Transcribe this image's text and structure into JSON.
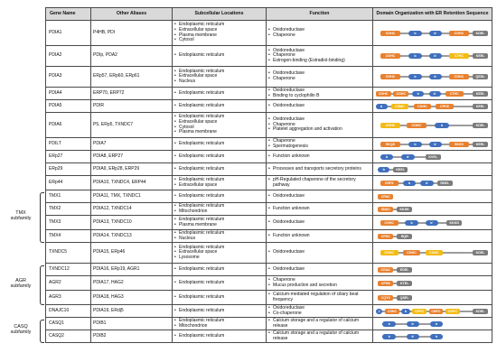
{
  "headers": {
    "gene": "Gene Name",
    "aliases": "Other Aliases",
    "locations": "Subcellular Locations",
    "function": "Function",
    "domain": "Domain Organization with ER Retention Sequence"
  },
  "rows": [
    {
      "gene": "PDIA1",
      "aliases": "P4HB, PDI",
      "loc": [
        "Endoplasmic reticulum",
        "Extracellular space",
        "Plasma membrane",
        "Cytosol"
      ],
      "func": [
        "Oxidoreductase",
        "Chaperone"
      ],
      "domains": [
        {
          "t": "a",
          "x": 6,
          "w": 17,
          "label": "CGHC"
        },
        {
          "t": "b",
          "x": 30,
          "w": 11,
          "label": "b"
        },
        {
          "t": "b",
          "x": 47,
          "w": 11,
          "label": "b'"
        },
        {
          "t": "a",
          "x": 64,
          "w": 17,
          "label": "CGHC"
        },
        {
          "t": "grey",
          "x": 84,
          "w": 13,
          "label": "KDEL"
        }
      ]
    },
    {
      "gene": "PDIA2",
      "aliases": "PDIp, PDA2",
      "loc": [
        "Endoplasmic reticulum"
      ],
      "func": [
        "Oxidoreductase",
        "Chaperone",
        "Estrogen-binding (Estradiol-binding)"
      ],
      "domains": [
        {
          "t": "a",
          "x": 6,
          "w": 17,
          "label": "CGHC"
        },
        {
          "t": "b",
          "x": 30,
          "w": 11,
          "label": "b"
        },
        {
          "t": "b",
          "x": 47,
          "w": 11,
          "label": "b'"
        },
        {
          "t": "yellow",
          "x": 64,
          "w": 17,
          "label": "CTHC"
        },
        {
          "t": "grey",
          "x": 84,
          "w": 13,
          "label": "KEEL"
        }
      ]
    },
    {
      "gene": "PDIA3",
      "aliases": "ERp57, ERp60, ERp61",
      "loc": [
        "Endoplasmic reticulum",
        "Extracellular space",
        "Nucleus"
      ],
      "func": [
        "Oxidoreductase",
        "Chaperone"
      ],
      "domains": [
        {
          "t": "a",
          "x": 6,
          "w": 17,
          "label": "CGHC"
        },
        {
          "t": "b",
          "x": 30,
          "w": 11,
          "label": "b"
        },
        {
          "t": "b",
          "x": 47,
          "w": 11,
          "label": "b'"
        },
        {
          "t": "a",
          "x": 64,
          "w": 17,
          "label": "CGHC"
        },
        {
          "t": "grey",
          "x": 84,
          "w": 13,
          "label": "QEDL"
        }
      ]
    },
    {
      "gene": "PDIA4",
      "aliases": "ERP70, ERP72",
      "loc": [
        "Endoplasmic reticulum"
      ],
      "func": [
        "Oxidoreductase",
        "Binding to cyclophilin B"
      ],
      "domains": [
        {
          "t": "a",
          "x": 2,
          "w": 13,
          "label": "CGHC"
        },
        {
          "t": "a",
          "x": 17,
          "w": 13,
          "label": "CGHC"
        },
        {
          "t": "b",
          "x": 33,
          "w": 10,
          "label": "b"
        },
        {
          "t": "b",
          "x": 47,
          "w": 10,
          "label": "b'"
        },
        {
          "t": "a",
          "x": 61,
          "w": 15,
          "label": "CTHC"
        },
        {
          "t": "grey",
          "x": 84,
          "w": 13,
          "label": "KEEL"
        }
      ]
    },
    {
      "gene": "PDIA5",
      "aliases": "PDIR",
      "loc": [
        "Endoplasmic reticulum"
      ],
      "func": [
        "Oxidoreductase"
      ],
      "domains": [
        {
          "t": "b",
          "x": 2,
          "w": 10,
          "label": "b"
        },
        {
          "t": "yellow",
          "x": 15,
          "w": 15,
          "label": "CSMC"
        },
        {
          "t": "a",
          "x": 34,
          "w": 15,
          "label": "CGHC"
        },
        {
          "t": "a",
          "x": 53,
          "w": 15,
          "label": "CPHC"
        },
        {
          "t": "grey",
          "x": 84,
          "w": 13,
          "label": "KEEL"
        }
      ]
    },
    {
      "gene": "PDIA6",
      "aliases": "P5, ERp5, TXNDC7",
      "loc": [
        "Endoplasmic reticulum",
        "Extracellular space",
        "Cytosol",
        "Plasma membrane"
      ],
      "func": [
        "Oxidoreductase",
        "Chaperone",
        "Platelet aggregation and activation"
      ],
      "domains": [
        {
          "t": "yellow",
          "x": 6,
          "w": 17,
          "label": "CGHC"
        },
        {
          "t": "a",
          "x": 28,
          "w": 17,
          "label": "CGHC"
        },
        {
          "t": "b",
          "x": 52,
          "w": 12,
          "label": "b"
        },
        {
          "t": "grey",
          "x": 84,
          "w": 13,
          "label": "KDEL"
        }
      ]
    },
    {
      "gene": "PDILT",
      "aliases": "PDIA7",
      "loc": [
        "Endoplasmic reticulum"
      ],
      "func": [
        "Chaperone",
        "Spermatogenesis"
      ],
      "domains": [
        {
          "t": "a",
          "x": 6,
          "w": 17,
          "label": "SKQS"
        },
        {
          "t": "b",
          "x": 30,
          "w": 11,
          "label": "b"
        },
        {
          "t": "b",
          "x": 47,
          "w": 11,
          "label": "b'"
        },
        {
          "t": "a",
          "x": 64,
          "w": 17,
          "label": "SKKS"
        },
        {
          "t": "grey",
          "x": 84,
          "w": 13,
          "label": "KEEL"
        }
      ]
    },
    {
      "gene": "ERp27",
      "aliases": "PDIA8, ERP27",
      "loc": [
        "Endoplasmic reticulum"
      ],
      "func": [
        "Function unknown"
      ],
      "domains": [
        {
          "t": "b",
          "x": 6,
          "w": 11,
          "label": "b"
        },
        {
          "t": "b",
          "x": 24,
          "w": 11,
          "label": "b'"
        },
        {
          "t": "grey",
          "x": 44,
          "w": 13,
          "label": "KVEL"
        }
      ]
    },
    {
      "gene": "ERp29",
      "aliases": "PDIA9, ERp28, ERP29",
      "loc": [
        "Endoplasmic reticulum"
      ],
      "func": [
        "Processes and transports secretory proteins"
      ],
      "domains": [
        {
          "t": "b",
          "x": 4,
          "w": 10,
          "label": "b"
        },
        {
          "t": "grey",
          "x": 17,
          "w": 12,
          "label": "KEEL"
        }
      ]
    },
    {
      "gene": "ERp44",
      "aliases": "PDIA10, TXNDC4, ERP44",
      "loc": [
        "Endoplasmic reticulum",
        "Extracellular space"
      ],
      "func": [
        "pH-Regulated chaperone of the secretory pathway"
      ],
      "domains": [
        {
          "t": "a",
          "x": 6,
          "w": 15,
          "label": "CRFS"
        },
        {
          "t": "b",
          "x": 25,
          "w": 11,
          "label": "b"
        },
        {
          "t": "b",
          "x": 40,
          "w": 11,
          "label": "b'"
        },
        {
          "t": "grey",
          "x": 54,
          "w": 13,
          "label": "RDEL"
        }
      ]
    },
    {
      "gene": "TMX1",
      "aliases": "PDIA11, TMX, TXNDC1",
      "loc": [
        "Endoplasmic reticulum"
      ],
      "func": [
        "Oxidoreductase"
      ],
      "domains": [
        {
          "t": "a",
          "x": 4,
          "w": 13,
          "label": "CPAC"
        }
      ]
    },
    {
      "gene": "TMX2",
      "aliases": "PDIA12, TXNDC14",
      "loc": [
        "Endoplasmic reticulum",
        "Mitochondrion"
      ],
      "func": [
        "Function unknown"
      ],
      "domains": [
        {
          "t": "a",
          "x": 4,
          "w": 13,
          "label": "SNDC"
        },
        {
          "t": "grey",
          "x": 20,
          "w": 13,
          "label": "KKDK"
        }
      ]
    },
    {
      "gene": "TMX3",
      "aliases": "PDIA13, TXNDC10",
      "loc": [
        "Endoplasmic reticulum",
        "Plasma membrane"
      ],
      "func": [
        "Oxidoreductase"
      ],
      "domains": [
        {
          "t": "a",
          "x": 6,
          "w": 15,
          "label": "CGHC"
        },
        {
          "t": "b",
          "x": 27,
          "w": 11,
          "label": "b"
        },
        {
          "t": "b",
          "x": 44,
          "w": 11,
          "label": "b'"
        },
        {
          "t": "grey",
          "x": 62,
          "w": 13,
          "label": "KKKD"
        }
      ]
    },
    {
      "gene": "TMX4",
      "aliases": "PDIA14, TXNDC13",
      "loc": [
        "Endoplasmic reticulum",
        "Nucleus"
      ],
      "func": [
        "Function unknown"
      ],
      "domains": [
        {
          "t": "a",
          "x": 4,
          "w": 13,
          "label": "CPSC"
        },
        {
          "t": "grey",
          "x": 20,
          "w": 13,
          "label": "RQR"
        }
      ]
    },
    {
      "gene": "TXNDC5",
      "aliases": "PDIA15, ERp46",
      "loc": [
        "Endoplasmic reticulum",
        "Extracellular space",
        "Lysosome"
      ],
      "func": [
        "Oxidoreductase"
      ],
      "domains": [
        {
          "t": "yellow",
          "x": 6,
          "w": 15,
          "label": "CGHC"
        },
        {
          "t": "a",
          "x": 25,
          "w": 15,
          "label": "CGHC"
        },
        {
          "t": "yellow",
          "x": 44,
          "w": 15,
          "label": "CGHC"
        },
        {
          "t": "grey",
          "x": 84,
          "w": 13,
          "label": "KDEL"
        }
      ]
    },
    {
      "gene": "TXNDC12",
      "aliases": "PDIA16, ERp19, AGR1",
      "loc": [
        "Endoplasmic reticulum"
      ],
      "func": [
        "Oxidoreductase"
      ],
      "domains": [
        {
          "t": "a",
          "x": 4,
          "w": 13,
          "label": "CGAC"
        },
        {
          "t": "grey",
          "x": 20,
          "w": 13,
          "label": "EDEL"
        }
      ]
    },
    {
      "gene": "AGR2",
      "aliases": "PDIA17, HAG2",
      "loc": [
        "Endoplasmic reticulum"
      ],
      "func": [
        "Chaperone",
        "Mucus production and secretion"
      ],
      "domains": [
        {
          "t": "a",
          "x": 4,
          "w": 13,
          "label": "CPHS"
        },
        {
          "t": "grey",
          "x": 20,
          "w": 13,
          "label": "KTEL"
        }
      ]
    },
    {
      "gene": "AGR3",
      "aliases": "PDIA18, HAG3",
      "loc": [
        "Endoplasmic reticulum"
      ],
      "func": [
        "Calcium-mediated regulation of ciliary beat frequency"
      ],
      "domains": [
        {
          "t": "a",
          "x": 4,
          "w": 13,
          "label": "CQYS"
        },
        {
          "t": "grey",
          "x": 20,
          "w": 13,
          "label": "QSEL"
        }
      ]
    },
    {
      "gene": "DNAJC10",
      "aliases": "PDIA19, ERdj5",
      "loc": [
        "Endoplasmic reticulum"
      ],
      "func": [
        "Oxidoreductase",
        "Co-chaperone"
      ],
      "domains": [
        {
          "t": "b",
          "x": 2,
          "w": 6,
          "label": "J"
        },
        {
          "t": "a",
          "x": 10,
          "w": 12,
          "label": "CSHC"
        },
        {
          "t": "b",
          "x": 24,
          "w": 7,
          "label": "b"
        },
        {
          "t": "yellow",
          "x": 33,
          "w": 12,
          "label": "CPPC"
        },
        {
          "t": "a",
          "x": 47,
          "w": 12,
          "label": "CHPC"
        },
        {
          "t": "yellow",
          "x": 61,
          "w": 12,
          "label": "CGPC"
        },
        {
          "t": "grey",
          "x": 84,
          "w": 13,
          "label": "KDEL"
        }
      ]
    },
    {
      "gene": "CASQ1",
      "aliases": "PDIB1",
      "loc": [
        "Endoplasmic reticulum",
        "Mitochondrion"
      ],
      "func": [
        "Calcium storage and a regulator of calcium release"
      ],
      "domains": [
        {
          "t": "b",
          "x": 8,
          "w": 11,
          "label": "b"
        },
        {
          "t": "b",
          "x": 28,
          "w": 11,
          "label": "b'"
        },
        {
          "t": "b",
          "x": 48,
          "w": 11,
          "label": "b"
        }
      ]
    },
    {
      "gene": "CASQ2",
      "aliases": "PDIB2",
      "loc": [
        "Endoplasmic reticulum"
      ],
      "func": [
        "Calcium storage and a regulator of calcium release"
      ],
      "domains": [
        {
          "t": "b",
          "x": 8,
          "w": 11,
          "label": "b"
        },
        {
          "t": "b",
          "x": 28,
          "w": 11,
          "label": "b'"
        },
        {
          "t": "b",
          "x": 48,
          "w": 11,
          "label": "b"
        }
      ]
    }
  ],
  "families": [
    {
      "id": "tmx",
      "lines": [
        "TMX",
        "subfamily"
      ]
    },
    {
      "id": "agr",
      "lines": [
        "AGR",
        "subfamily"
      ]
    },
    {
      "id": "casq",
      "lines": [
        "CASQ",
        "subfamily"
      ]
    }
  ],
  "colors": {
    "domain_a": "#e8812f",
    "domain_b": "#3f6fbd",
    "domain_yellow": "#f2bb16",
    "retention": "#7b7b7b",
    "header_bg": "#d9d9d9",
    "linker": "#9c9c9c"
  }
}
